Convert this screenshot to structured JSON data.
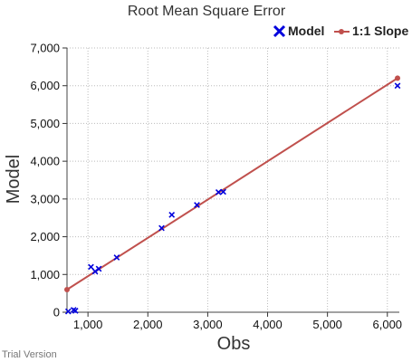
{
  "chart_data": {
    "type": "scatter",
    "title": "Root Mean Square Error",
    "xlabel": "Obs",
    "ylabel": "Model",
    "xlim": [
      650,
      6200
    ],
    "ylim": [
      0,
      7000
    ],
    "x_ticks": [
      1000,
      2000,
      3000,
      4000,
      5000,
      6000
    ],
    "x_tick_labels": [
      "1,000",
      "2,000",
      "3,000",
      "4,000",
      "5,000",
      "6,000"
    ],
    "y_ticks": [
      0,
      1000,
      2000,
      3000,
      4000,
      5000,
      6000,
      7000
    ],
    "y_tick_labels": [
      "0",
      "1,000",
      "2,000",
      "3,000",
      "4,000",
      "5,000",
      "6,000",
      "7,000"
    ],
    "grid": "dotted",
    "legend_position": "top-right",
    "series": [
      {
        "name": "Model",
        "type": "scatter",
        "marker": "x",
        "color": "#0000dd",
        "points": [
          {
            "x": 670,
            "y": 20
          },
          {
            "x": 760,
            "y": 60
          },
          {
            "x": 790,
            "y": 40
          },
          {
            "x": 1050,
            "y": 1200
          },
          {
            "x": 1120,
            "y": 1080
          },
          {
            "x": 1180,
            "y": 1150
          },
          {
            "x": 1480,
            "y": 1450
          },
          {
            "x": 2230,
            "y": 2230
          },
          {
            "x": 2400,
            "y": 2580
          },
          {
            "x": 2820,
            "y": 2840
          },
          {
            "x": 3180,
            "y": 3180
          },
          {
            "x": 3260,
            "y": 3190
          },
          {
            "x": 6170,
            "y": 6000
          }
        ]
      },
      {
        "name": "1:1 Slope",
        "type": "line",
        "marker": "dot",
        "color": "#c0504d",
        "points": [
          {
            "x": 650,
            "y": 600
          },
          {
            "x": 6170,
            "y": 6200
          }
        ]
      }
    ]
  },
  "watermark": "Trial Version"
}
